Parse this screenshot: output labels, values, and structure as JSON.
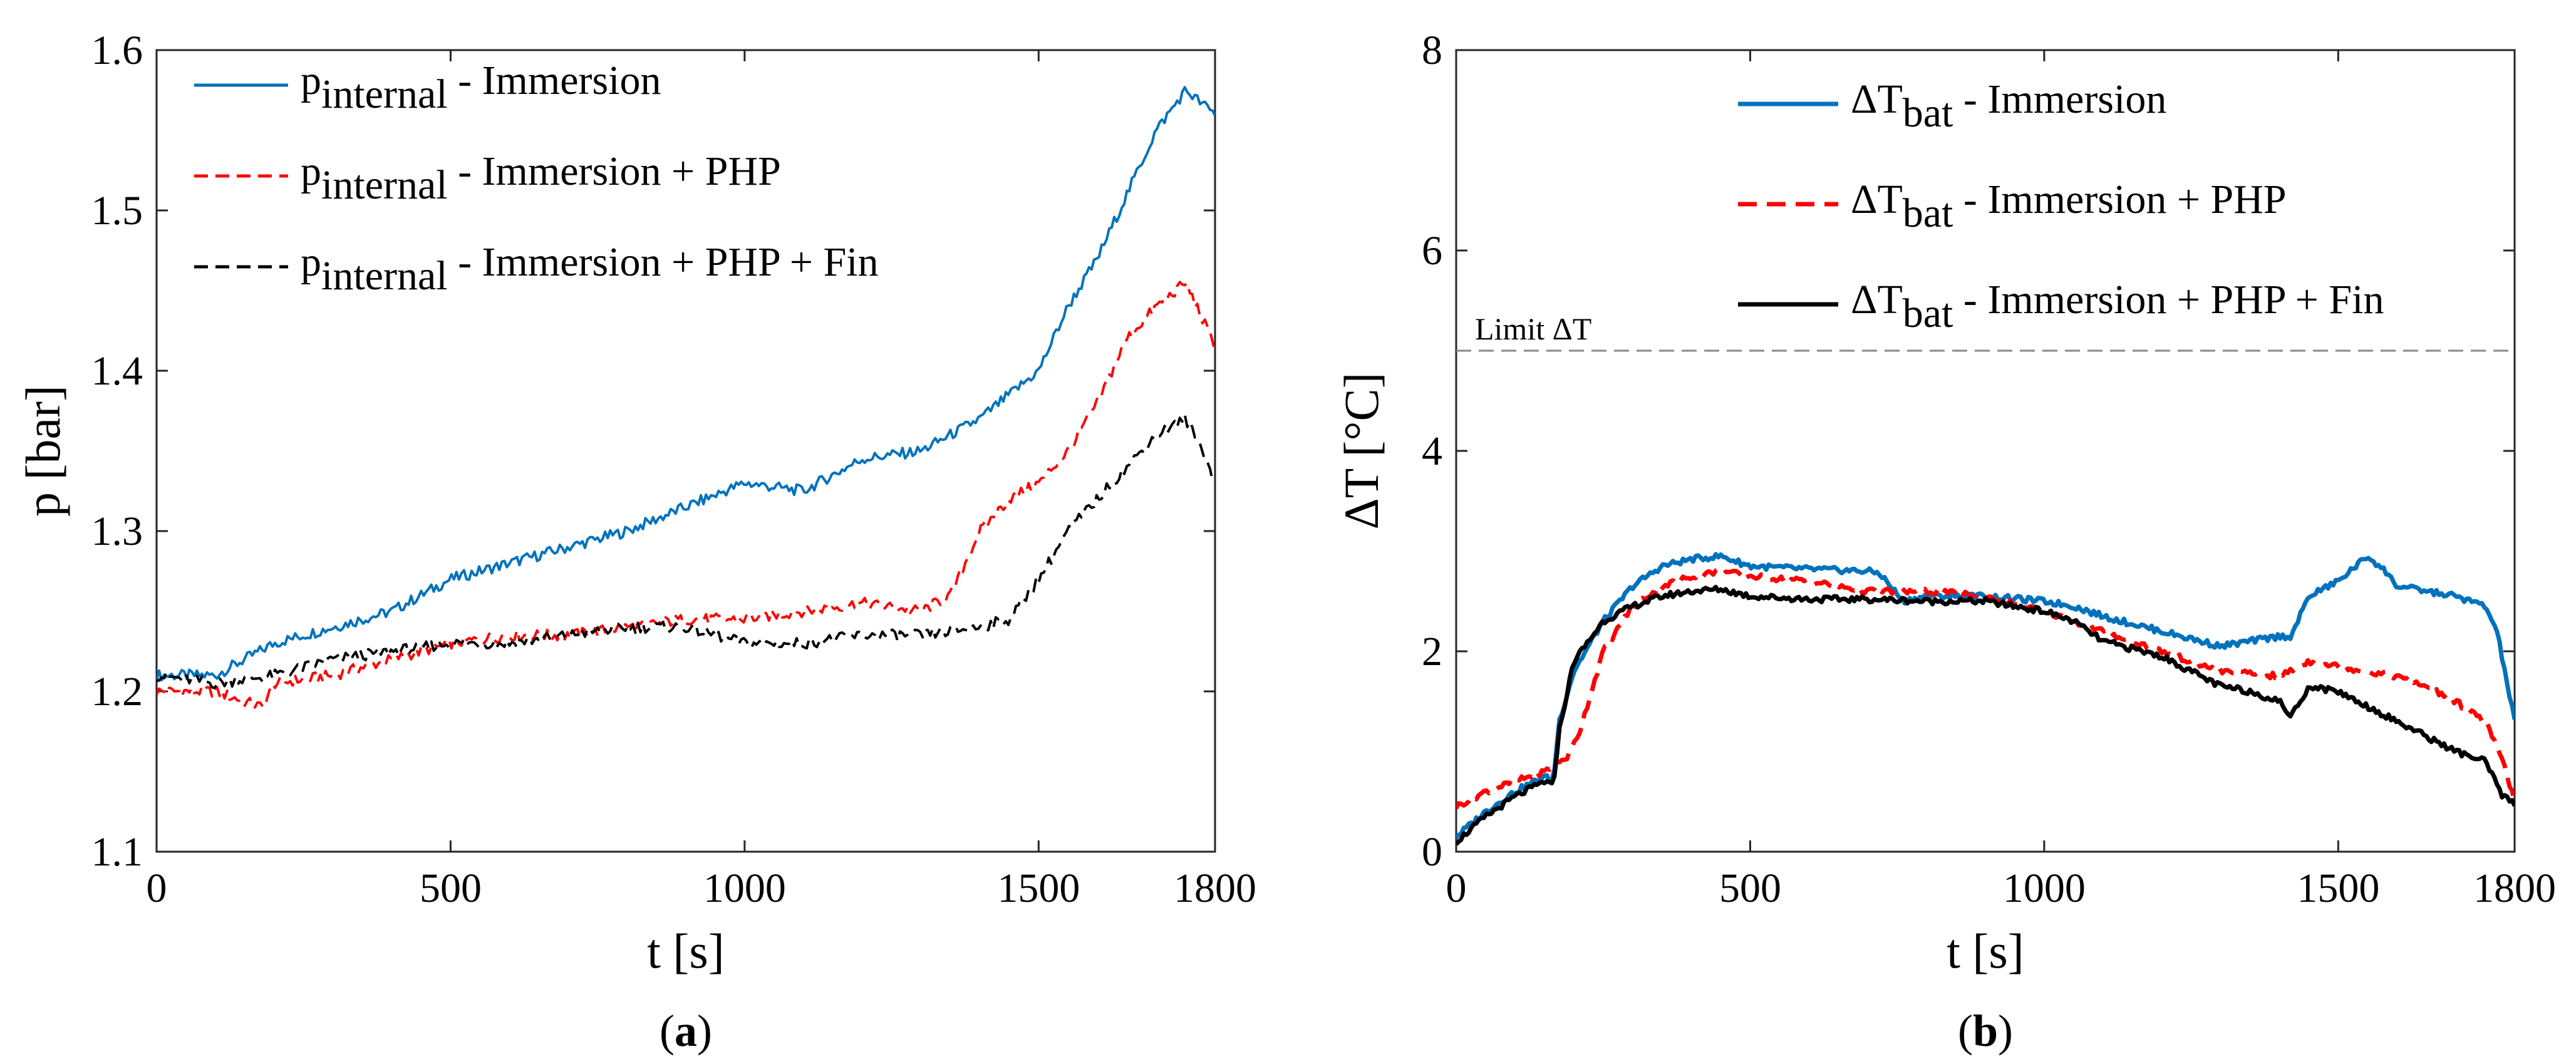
{
  "chart_data": [
    {
      "type": "line",
      "panel": "a",
      "caption": {
        "label": "a"
      },
      "xlabel": "t [s]",
      "ylabel": "p [bar]",
      "xlim": [
        0,
        1800
      ],
      "ylim": [
        1.1,
        1.6
      ],
      "x_ticks": [
        "0",
        "500",
        "1000",
        "1500",
        "1800"
      ],
      "y_ticks": [
        "1.1",
        "1.2",
        "1.3",
        "1.4",
        "1.5",
        "1.6"
      ],
      "legend": {
        "placement": "top-left"
      },
      "series": [
        {
          "name": "pinternal - Immersion",
          "legend_label": {
            "base": "p",
            "sub": "internal",
            "rest": " - Immersion"
          },
          "color": "#0072BD",
          "style": "solid",
          "x": [
            0,
            100,
            200,
            300,
            400,
            500,
            600,
            700,
            800,
            900,
            1000,
            1100,
            1200,
            1300,
            1400,
            1500,
            1550,
            1600,
            1650,
            1700,
            1750,
            1800
          ],
          "y": [
            1.21,
            1.21,
            1.23,
            1.24,
            1.25,
            1.27,
            1.28,
            1.29,
            1.3,
            1.315,
            1.33,
            1.325,
            1.345,
            1.35,
            1.37,
            1.4,
            1.44,
            1.47,
            1.51,
            1.55,
            1.575,
            1.56
          ]
        },
        {
          "name": "pinternal - Immersion + PHP",
          "legend_label": {
            "base": "p",
            "sub": "internal",
            "rest": " - Immersion + PHP"
          },
          "color": "#FF0000",
          "style": "dashed",
          "x": [
            0,
            100,
            180,
            200,
            300,
            400,
            500,
            600,
            700,
            800,
            900,
            1000,
            1100,
            1200,
            1300,
            1350,
            1400,
            1450,
            1500,
            1550,
            1600,
            1650,
            1700,
            1750,
            1800
          ],
          "y": [
            1.2,
            1.2,
            1.19,
            1.205,
            1.21,
            1.22,
            1.23,
            1.235,
            1.235,
            1.24,
            1.245,
            1.245,
            1.25,
            1.255,
            1.25,
            1.26,
            1.3,
            1.32,
            1.33,
            1.35,
            1.38,
            1.42,
            1.44,
            1.455,
            1.415
          ]
        },
        {
          "name": "pinternal - Immersion + PHP + Fin",
          "legend_label": {
            "base": "p",
            "sub": "internal",
            "rest": " - Immersion + PHP + Fin"
          },
          "color": "#000000",
          "style": "dashed",
          "x": [
            0,
            100,
            200,
            300,
            400,
            500,
            600,
            700,
            800,
            900,
            1000,
            1100,
            1200,
            1300,
            1400,
            1450,
            1500,
            1550,
            1600,
            1650,
            1700,
            1750,
            1780,
            1800
          ],
          "y": [
            1.21,
            1.205,
            1.21,
            1.22,
            1.225,
            1.23,
            1.23,
            1.235,
            1.24,
            1.24,
            1.23,
            1.23,
            1.235,
            1.235,
            1.24,
            1.245,
            1.27,
            1.3,
            1.32,
            1.34,
            1.36,
            1.37,
            1.35,
            1.33
          ]
        }
      ]
    },
    {
      "type": "line",
      "panel": "b",
      "caption": {
        "label": "b"
      },
      "xlabel": "t [s]",
      "ylabel": "ΔT [°C]",
      "xlim": [
        0,
        1800
      ],
      "ylim": [
        0,
        8
      ],
      "x_ticks": [
        "0",
        "500",
        "1000",
        "1500",
        "1800"
      ],
      "y_ticks": [
        "0",
        "2",
        "4",
        "6",
        "8"
      ],
      "legend": {
        "placement": "top-right"
      },
      "annotations": [
        {
          "text": "Limit ΔT",
          "y": 5,
          "style": "dashed-reference-line",
          "color": "#888888"
        }
      ],
      "series": [
        {
          "name": "ΔTbat - Immersion",
          "legend_label": {
            "base": "ΔT",
            "sub": "bat",
            "rest": " - Immersion"
          },
          "color": "#0072BD",
          "style": "solid",
          "x": [
            0,
            50,
            100,
            150,
            165,
            175,
            200,
            250,
            300,
            350,
            400,
            450,
            500,
            600,
            700,
            720,
            760,
            800,
            900,
            1000,
            1050,
            1100,
            1200,
            1300,
            1400,
            1420,
            1450,
            1500,
            1550,
            1580,
            1600,
            1650,
            1700,
            1750,
            1770,
            1800
          ],
          "y": [
            0.15,
            0.4,
            0.6,
            0.75,
            0.7,
            1.3,
            1.8,
            2.3,
            2.65,
            2.85,
            2.92,
            2.95,
            2.85,
            2.82,
            2.8,
            2.78,
            2.5,
            2.55,
            2.55,
            2.5,
            2.45,
            2.35,
            2.2,
            2.05,
            2.15,
            2.15,
            2.55,
            2.7,
            2.95,
            2.8,
            2.65,
            2.6,
            2.55,
            2.45,
            2.2,
            1.3
          ]
        },
        {
          "name": "ΔTbat - Immersion + PHP",
          "legend_label": {
            "base": "ΔT",
            "sub": "bat",
            "rest": " - Immersion + PHP"
          },
          "color": "#FF0000",
          "style": "dashed",
          "x": [
            0,
            50,
            100,
            150,
            190,
            210,
            250,
            300,
            350,
            400,
            450,
            500,
            600,
            700,
            800,
            900,
            1000,
            1100,
            1150,
            1200,
            1300,
            1400,
            1450,
            1500,
            1550,
            1600,
            1650,
            1700,
            1750,
            1780,
            1800
          ],
          "y": [
            0.45,
            0.6,
            0.7,
            0.8,
            0.95,
            1.2,
            2.0,
            2.45,
            2.65,
            2.75,
            2.8,
            2.75,
            2.7,
            2.6,
            2.6,
            2.55,
            2.4,
            2.2,
            2.1,
            2.0,
            1.8,
            1.75,
            1.9,
            1.85,
            1.8,
            1.75,
            1.65,
            1.5,
            1.3,
            0.9,
            0.5
          ]
        },
        {
          "name": "ΔTbat - Immersion + PHP + Fin",
          "legend_label": {
            "base": "ΔT",
            "sub": "bat",
            "rest": " - Immersion + PHP + Fin"
          },
          "color": "#000000",
          "style": "solid",
          "x": [
            0,
            50,
            100,
            150,
            165,
            175,
            200,
            250,
            300,
            350,
            400,
            450,
            500,
            600,
            700,
            800,
            900,
            1000,
            1050,
            1100,
            1200,
            1300,
            1350,
            1400,
            1420,
            1450,
            1500,
            1550,
            1600,
            1650,
            1700,
            1750,
            1780,
            1800
          ],
          "y": [
            0.1,
            0.35,
            0.55,
            0.7,
            0.65,
            1.2,
            1.9,
            2.3,
            2.45,
            2.55,
            2.6,
            2.62,
            2.55,
            2.52,
            2.52,
            2.5,
            2.5,
            2.4,
            2.3,
            2.1,
            1.95,
            1.65,
            1.6,
            1.5,
            1.35,
            1.65,
            1.6,
            1.45,
            1.3,
            1.15,
            1.0,
            0.9,
            0.55,
            0.48
          ]
        }
      ]
    }
  ]
}
